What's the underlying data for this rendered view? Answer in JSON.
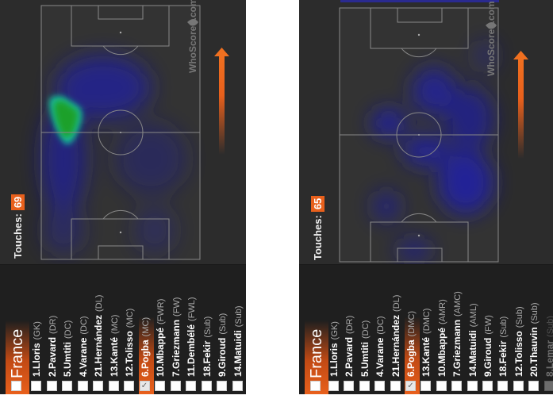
{
  "accent_color": "#e8601c",
  "panels": [
    {
      "touches_label": "Touches:",
      "touches_value": "69",
      "watermark": "WhoScored.com",
      "team": "France",
      "players": [
        {
          "name": "1.Lloris",
          "pos": "(GK)",
          "checked": false
        },
        {
          "name": "2.Pavard",
          "pos": "(DR)",
          "checked": false
        },
        {
          "name": "5.Umtiti",
          "pos": "(DC)",
          "checked": false
        },
        {
          "name": "4.Varane",
          "pos": "(DC)",
          "checked": false
        },
        {
          "name": "21.Hernández",
          "pos": "(DL)",
          "checked": false
        },
        {
          "name": "13.Kanté",
          "pos": "(MC)",
          "checked": false
        },
        {
          "name": "12.Tolisso",
          "pos": "(MC)",
          "checked": false
        },
        {
          "name": "6.Pogba",
          "pos": "(MC)",
          "checked": true
        },
        {
          "name": "10.Mbappé",
          "pos": "(FWR)",
          "checked": false
        },
        {
          "name": "7.Griezmann",
          "pos": "(FW)",
          "checked": false
        },
        {
          "name": "11.Dembélé",
          "pos": "(FWL)",
          "checked": false
        },
        {
          "name": "18.Fekir",
          "pos": "(Sub)",
          "checked": false
        },
        {
          "name": "9.Giroud",
          "pos": "(Sub)",
          "checked": false
        },
        {
          "name": "14.Matuidi",
          "pos": "(Sub)",
          "checked": false
        }
      ]
    },
    {
      "touches_label": "Touches:",
      "touches_value": "65",
      "watermark": "WhoScored.com",
      "team": "France",
      "players": [
        {
          "name": "1.Lloris",
          "pos": "(GK)",
          "checked": false
        },
        {
          "name": "2.Pavard",
          "pos": "(DR)",
          "checked": false
        },
        {
          "name": "5.Umtiti",
          "pos": "(DC)",
          "checked": false
        },
        {
          "name": "4.Varane",
          "pos": "(DC)",
          "checked": false
        },
        {
          "name": "21.Hernández",
          "pos": "(DL)",
          "checked": false
        },
        {
          "name": "6.Pogba",
          "pos": "(DMC)",
          "checked": true
        },
        {
          "name": "13.Kanté",
          "pos": "(DMC)",
          "checked": false
        },
        {
          "name": "10.Mbappé",
          "pos": "(AMR)",
          "checked": false
        },
        {
          "name": "7.Griezmann",
          "pos": "(AMC)",
          "checked": false
        },
        {
          "name": "14.Matuidi",
          "pos": "(AML)",
          "checked": false
        },
        {
          "name": "9.Giroud",
          "pos": "(FW)",
          "checked": false
        },
        {
          "name": "18.Fekir",
          "pos": "(Sub)",
          "checked": false
        },
        {
          "name": "12.Tolisso",
          "pos": "(Sub)",
          "checked": false
        },
        {
          "name": "20.Thauvin",
          "pos": "(Sub)",
          "checked": false
        },
        {
          "name": "8.Lemar",
          "pos": "(Sub)",
          "checked": false,
          "faded": true
        }
      ]
    }
  ]
}
